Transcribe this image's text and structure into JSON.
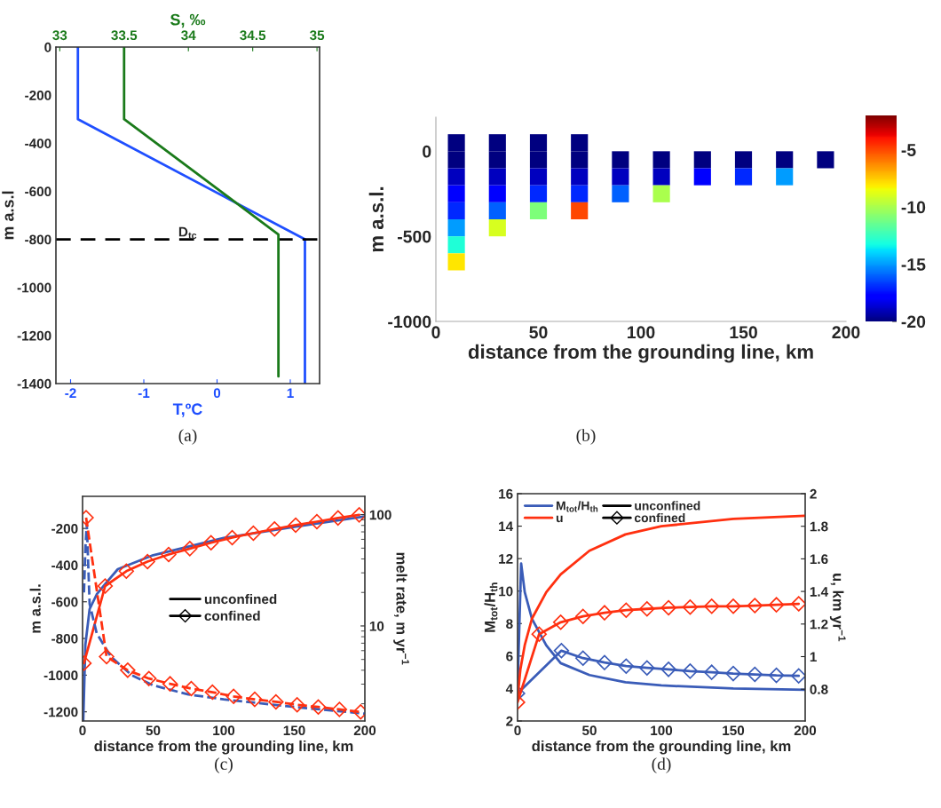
{
  "chart_data": [
    {
      "type": "line",
      "xlabel": "T,ºC",
      "x2label": "S, ‰",
      "ylabel": "m a.s.l",
      "xlim": [
        -2.2,
        1.4
      ],
      "xticks": [
        -2,
        -1,
        0,
        1
      ],
      "x2lim": [
        32.97,
        35.02
      ],
      "x2ticks": [
        33,
        33.5,
        34,
        34.5,
        35
      ],
      "ylim": [
        -1400,
        0
      ],
      "yticks": [
        -1400,
        -1200,
        -1000,
        -800,
        -600,
        -400,
        -200,
        0
      ],
      "grid": false,
      "legend": false,
      "series": [
        {
          "color": "#1f4fff",
          "x": [
            -1.9,
            -1.9,
            1.2,
            1.2
          ],
          "values": [
            0,
            -300,
            -800,
            -1400
          ]
        },
        {
          "color": "#1a7a1a",
          "axis": "x2",
          "x": [
            33.5,
            33.5,
            34.7,
            34.7
          ],
          "values": [
            0,
            -300,
            -780,
            -1370
          ]
        }
      ],
      "ref_lines": [
        {
          "axis": "y",
          "value": -800,
          "label": "D$_{tc}$",
          "color": "#000000",
          "line_style": "dashed"
        }
      ],
      "annotations": [
        "(a)"
      ]
    },
    {
      "type": "scatter",
      "marker": "square",
      "xlabel": "distance from the grounding line, km",
      "ylabel": "m a.s.l.",
      "xlim": [
        0,
        200
      ],
      "xticks": [
        0,
        50,
        100,
        150,
        200
      ],
      "ylim": [
        -1000,
        200
      ],
      "yticks": [
        -1000,
        -500,
        0
      ],
      "clim": [
        -20,
        -2
      ],
      "cticks": [
        -20,
        -15,
        -10,
        -5
      ],
      "x": [
        10,
        30,
        50,
        70,
        10,
        30,
        50,
        70,
        90,
        110,
        130,
        150,
        170,
        190,
        10,
        30,
        50,
        70,
        90,
        110,
        130,
        150,
        170,
        10,
        30,
        50,
        70,
        90,
        110,
        10,
        30,
        50,
        70,
        10,
        30,
        10,
        10
      ],
      "values": [
        50,
        50,
        50,
        50,
        -50,
        -50,
        -50,
        -50,
        -50,
        -50,
        -50,
        -50,
        -50,
        -50,
        -150,
        -150,
        -150,
        -150,
        -150,
        -150,
        -150,
        -150,
        -150,
        -250,
        -250,
        -250,
        -250,
        -250,
        -250,
        -350,
        -350,
        -350,
        -350,
        -450,
        -450,
        -550,
        -650
      ],
      "cvalues": [
        -20,
        -20,
        -20,
        -20,
        -20,
        -20,
        -20,
        -20,
        -20,
        -20,
        -20,
        -20,
        -20,
        -20,
        -19,
        -19,
        -19,
        -19,
        -19,
        -19,
        -18,
        -17,
        -15,
        -18,
        -18,
        -17,
        -17,
        -16,
        -10,
        -17,
        -16,
        -11,
        -5,
        -15,
        -9,
        -13,
        -8
      ],
      "annotations": [
        "(b)"
      ]
    },
    {
      "type": "line",
      "xlabel": "distance from the grounding line, km",
      "ylabel": "m a.s.l.",
      "y2label": "melt rate, m yr$^{−1}$",
      "xlim": [
        0,
        200
      ],
      "xticks": [
        0,
        50,
        100,
        150,
        200
      ],
      "ylim": [
        -1250,
        -25
      ],
      "yticks": [
        -1200,
        -1000,
        -800,
        -600,
        -400,
        -200
      ],
      "y2lim": [
        1.4,
        146
      ],
      "y2ticks": [
        10,
        100
      ],
      "log": "y2",
      "grid": false,
      "legend": "center",
      "series": [
        {
          "color": "#3a5cb8",
          "x": [
            0.5,
            2,
            5,
            10,
            17,
            25,
            50,
            100,
            150,
            200
          ],
          "values": [
            -1250,
            -834,
            -640,
            -560,
            -494,
            -422,
            -346,
            -252,
            -192,
            -135
          ]
        },
        {
          "color": "#ff3010",
          "marker": "diamond",
          "x": [
            1,
            16,
            31,
            46,
            61,
            76,
            91,
            106,
            121,
            136,
            151,
            166,
            181,
            196
          ],
          "values": [
            -935,
            -514,
            -433,
            -381,
            -342,
            -310,
            -278,
            -250,
            -226,
            -203,
            -182,
            -163,
            -143,
            -126
          ]
        },
        {
          "color": "#3a5cb8",
          "axis": "y2",
          "line_style": "dashed",
          "x": [
            1,
            2,
            3,
            5,
            10,
            20,
            35,
            50,
            75,
            100,
            150,
            200
          ],
          "values": [
            20,
            50,
            83,
            15.8,
            8.6,
            5.3,
            3.6,
            2.93,
            2.42,
            2.19,
            1.87,
            1.63
          ]
        },
        {
          "color": "#ff3010",
          "axis": "y2",
          "line_style": "dashed",
          "marker": "diamond",
          "x": [
            2.5,
            17,
            32,
            47,
            62,
            77,
            92,
            107,
            122,
            137,
            152,
            167,
            182,
            197
          ],
          "values": [
            94,
            5.3,
            4.0,
            3.37,
            3.02,
            2.74,
            2.54,
            2.33,
            2.19,
            2.08,
            1.96,
            1.87,
            1.78,
            1.69
          ]
        },
        {
          "name": "unconfined",
          "color": "#000000"
        },
        {
          "name": "confined",
          "color": "#000000",
          "marker": "diamond"
        }
      ],
      "annotations": [
        "(c)"
      ]
    },
    {
      "type": "line",
      "xlabel": "distance from the grounding line, km",
      "ylabel": "M$_{tot}$/H$_{th}$",
      "y2label": "u, km yr$^{−1}$",
      "xlim": [
        0,
        200
      ],
      "xticks": [
        0,
        50,
        100,
        150,
        200
      ],
      "ylim": [
        2,
        16
      ],
      "yticks": [
        2,
        4,
        6,
        8,
        10,
        12,
        14,
        16
      ],
      "y2lim": [
        0.605,
        2
      ],
      "y2ticks": [
        0.8,
        1,
        1.2,
        1.4,
        1.6,
        1.8,
        2
      ],
      "grid": false,
      "legend": "top left",
      "series": [
        {
          "name": "M$_{tot}$/H$_{th}$",
          "color": "#3a5cb8",
          "x": [
            0,
            2.5,
            5,
            10,
            20,
            30,
            50,
            75,
            100,
            150,
            200
          ],
          "values": [
            4.0,
            11.7,
            9.94,
            8.3,
            6.66,
            5.56,
            4.83,
            4.38,
            4.19,
            4.0,
            3.92
          ]
        },
        {
          "name": "u",
          "color": "#ff3010",
          "axis": "y2",
          "x": [
            0,
            2,
            5,
            10,
            20,
            30,
            50,
            75,
            100,
            150,
            200
          ],
          "values": [
            0.742,
            0.924,
            1.07,
            1.233,
            1.396,
            1.505,
            1.65,
            1.75,
            1.8,
            1.845,
            1.865
          ]
        },
        {
          "color": "#3a5cb8",
          "marker": "diamond",
          "x": [
            0,
            30.5,
            45.5,
            60.5,
            75.5,
            90,
            105,
            120,
            135,
            150,
            165,
            180,
            195.5
          ],
          "values": [
            3.7,
            6.33,
            5.87,
            5.6,
            5.38,
            5.27,
            5.18,
            5.07,
            5.0,
            4.92,
            4.87,
            4.81,
            4.78
          ]
        },
        {
          "color": "#ff3010",
          "axis": "y2",
          "marker": "diamond",
          "x": [
            0,
            15,
            30,
            45.5,
            60.5,
            75.5,
            90,
            105,
            120,
            135,
            150,
            165,
            180,
            195.5
          ],
          "values": [
            0.72,
            1.138,
            1.211,
            1.247,
            1.269,
            1.285,
            1.293,
            1.3,
            1.304,
            1.309,
            1.309,
            1.313,
            1.318,
            1.324
          ]
        },
        {
          "name": "unconfined",
          "color": "#000000"
        },
        {
          "name": "confined",
          "color": "#000000",
          "marker": "diamond"
        }
      ],
      "annotations": [
        "(d)"
      ]
    }
  ]
}
